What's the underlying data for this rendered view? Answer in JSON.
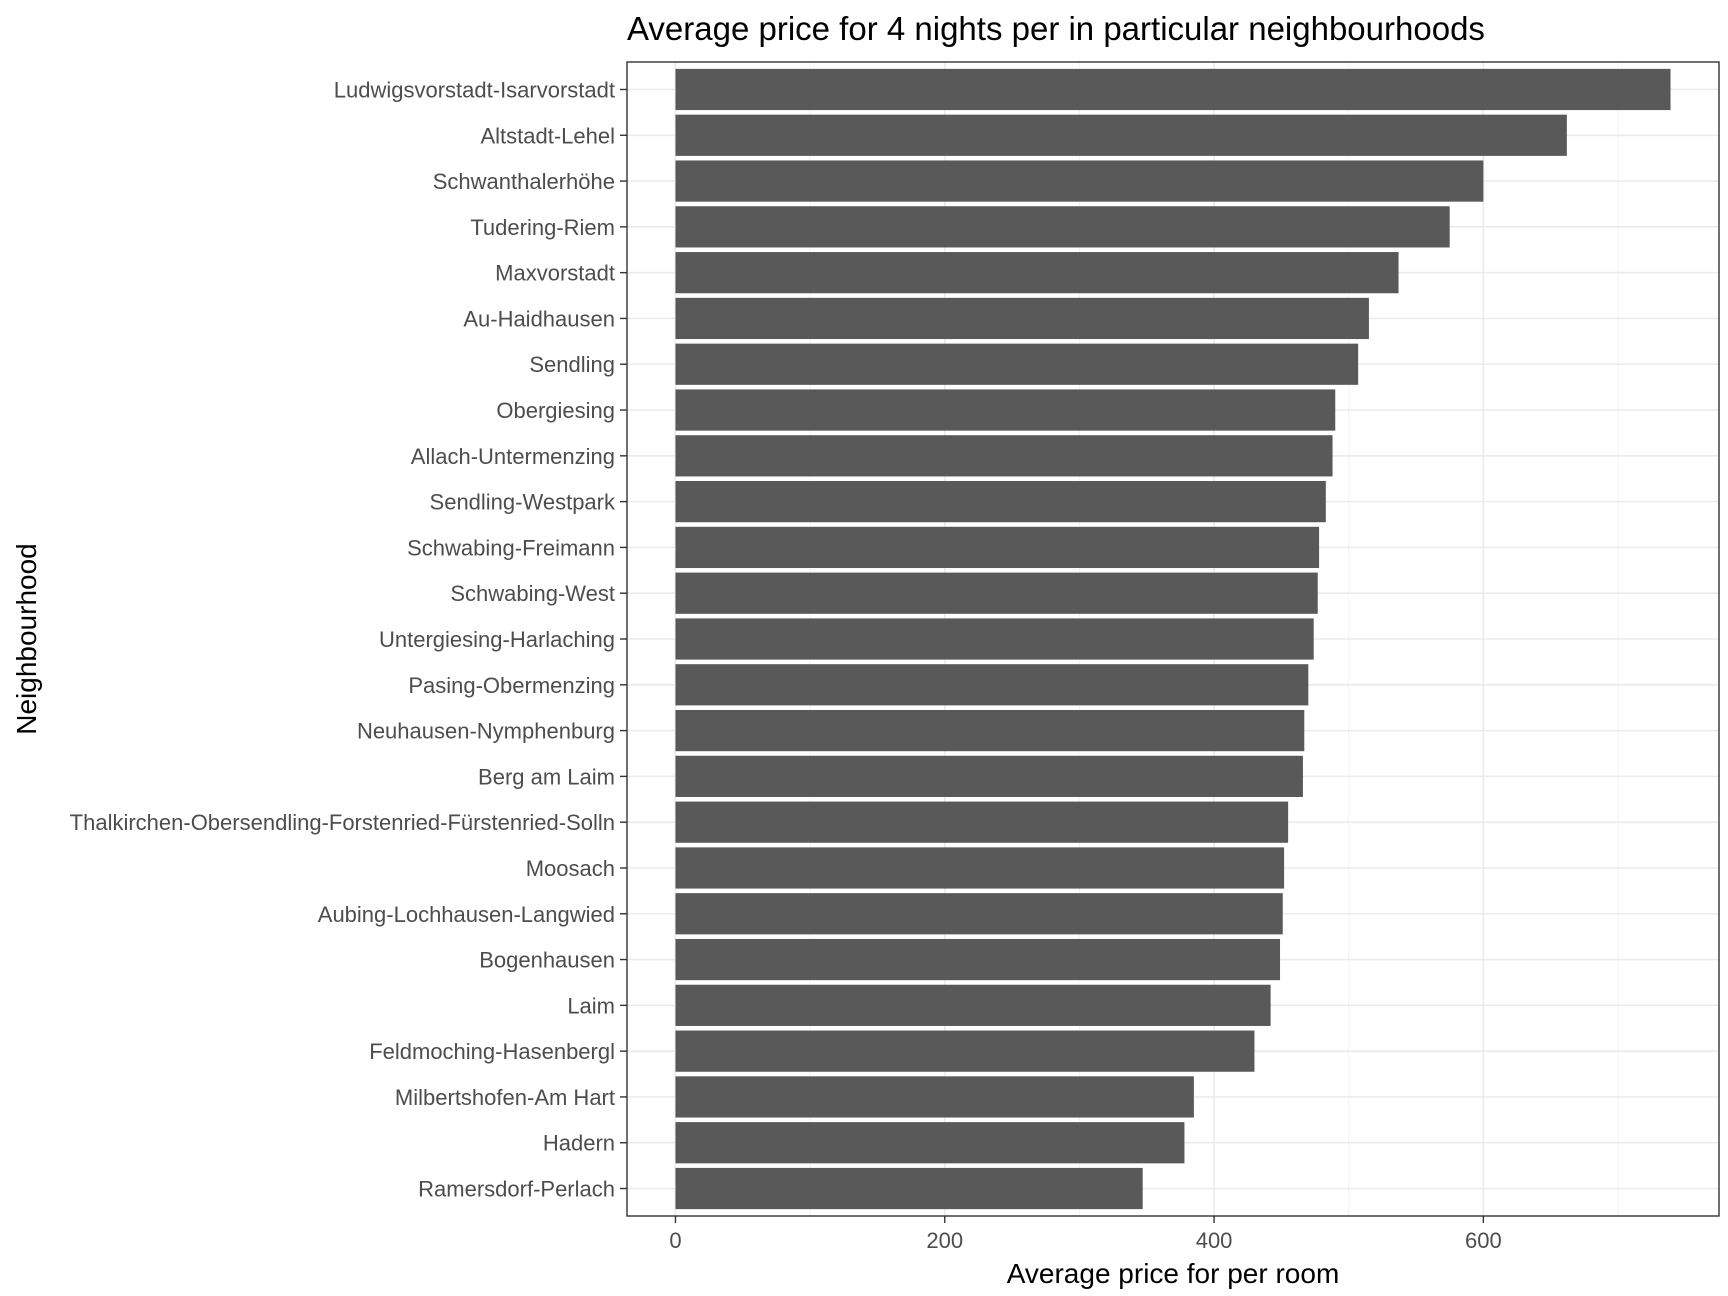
{
  "chart_data": {
    "type": "bar",
    "orientation": "horizontal",
    "title": "Average price for 4 nights per in particular neighbourhoods",
    "xlabel": "Average price for per room",
    "ylabel": "Neighbourhood",
    "xlim": [
      -36,
      775
    ],
    "xticks": [
      0,
      200,
      400,
      600
    ],
    "grid": true,
    "bar_color": "#595959",
    "categories": [
      "Ludwigsvorstadt-Isarvorstadt",
      "Altstadt-Lehel",
      "Schwanthalerhöhe",
      "Tudering-Riem",
      "Maxvorstadt",
      "Au-Haidhausen",
      "Sendling",
      "Obergiesing",
      "Allach-Untermenzing",
      "Sendling-Westpark",
      "Schwabing-Freimann",
      "Schwabing-West",
      "Untergiesing-Harlaching",
      "Pasing-Obermenzing",
      "Neuhausen-Nymphenburg",
      "Berg am Laim",
      "Thalkirchen-Obersendling-Forstenried-Fürstenried-Solln",
      "Moosach",
      "Aubing-Lochhausen-Langwied",
      "Bogenhausen",
      "Laim",
      "Feldmoching-Hasenbergl",
      "Milbertshofen-Am Hart",
      "Hadern",
      "Ramersdorf-Perlach"
    ],
    "values": [
      739,
      662,
      600,
      575,
      537,
      515,
      507,
      490,
      488,
      483,
      478,
      477,
      474,
      470,
      467,
      466,
      455,
      452,
      451,
      449,
      442,
      430,
      385,
      378,
      347
    ]
  }
}
